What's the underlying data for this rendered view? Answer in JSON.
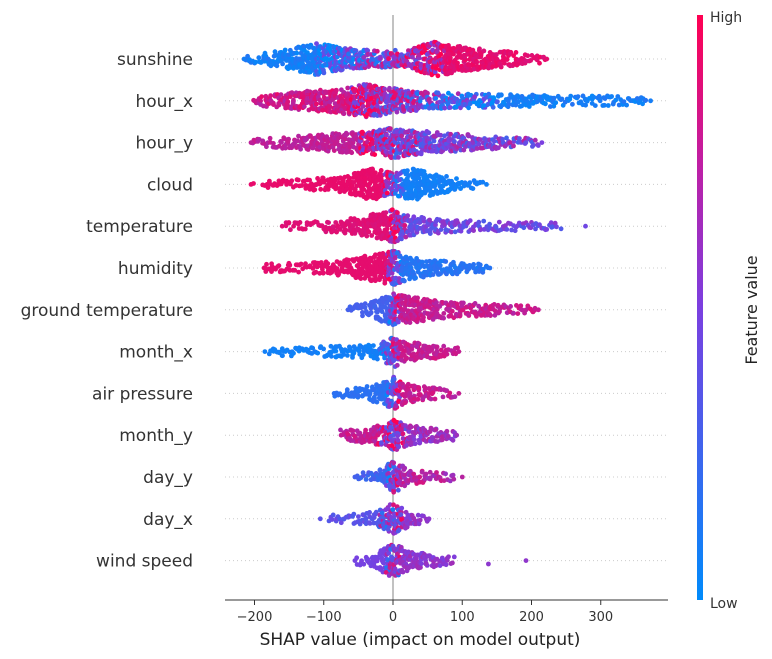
{
  "chart_data": {
    "type": "scatter",
    "subtype": "shap-beeswarm",
    "xlabel": "SHAP value (impact on model output)",
    "x_ticks": [
      -200,
      -100,
      0,
      100,
      200,
      300
    ],
    "xlim": [
      -240,
      385
    ],
    "colorbar": {
      "label": "Feature value",
      "high_label": "High",
      "low_label": "Low",
      "low_color": "#008bfb",
      "high_color": "#ff0052"
    },
    "features": [
      {
        "name": "sunshine",
        "min": -215,
        "max": 222,
        "density": [
          [
            -215,
            0.05
          ],
          [
            -180,
            0.2
          ],
          [
            -140,
            0.55
          ],
          [
            -110,
            0.8
          ],
          [
            -60,
            0.45
          ],
          [
            -20,
            0.35
          ],
          [
            20,
            0.4
          ],
          [
            60,
            0.9
          ],
          [
            100,
            0.6
          ],
          [
            150,
            0.35
          ],
          [
            190,
            0.18
          ],
          [
            222,
            0.04
          ]
        ],
        "color_split": [
          -110,
          0.02,
          0.15,
          75,
          0.95,
          0.85
        ]
      },
      {
        "name": "hour_x",
        "min": -200,
        "max": 372,
        "density": [
          [
            -200,
            0.08
          ],
          [
            -150,
            0.35
          ],
          [
            -80,
            0.55
          ],
          [
            -40,
            0.85
          ],
          [
            0,
            0.6
          ],
          [
            50,
            0.35
          ],
          [
            120,
            0.25
          ],
          [
            200,
            0.18
          ],
          [
            280,
            0.15
          ],
          [
            372,
            0.05
          ]
        ],
        "color_split": [
          -60,
          0.7,
          0.92,
          150,
          0.15,
          0.02
        ]
      },
      {
        "name": "hour_y",
        "min": -205,
        "max": 215,
        "density": [
          [
            -205,
            0.05
          ],
          [
            -150,
            0.2
          ],
          [
            -80,
            0.4
          ],
          [
            -30,
            0.55
          ],
          [
            0,
            0.8
          ],
          [
            30,
            0.6
          ],
          [
            80,
            0.4
          ],
          [
            150,
            0.2
          ],
          [
            215,
            0.04
          ]
        ],
        "color_split": [
          -50,
          0.8,
          0.7,
          40,
          0.25,
          0.75
        ]
      },
      {
        "name": "cloud",
        "min": -205,
        "max": 135,
        "density": [
          [
            -205,
            0.03
          ],
          [
            -130,
            0.15
          ],
          [
            -70,
            0.3
          ],
          [
            -30,
            0.85
          ],
          [
            0,
            0.5
          ],
          [
            30,
            0.8
          ],
          [
            60,
            0.45
          ],
          [
            100,
            0.15
          ],
          [
            135,
            0.04
          ]
        ],
        "color_split": [
          -15,
          0.9,
          0.92,
          15,
          0.1,
          0.05
        ]
      },
      {
        "name": "temperature",
        "min": -160,
        "max": 278,
        "density": [
          [
            -160,
            0.05
          ],
          [
            -100,
            0.15
          ],
          [
            -50,
            0.35
          ],
          [
            -10,
            0.75
          ],
          [
            0,
            0.85
          ],
          [
            20,
            0.5
          ],
          [
            60,
            0.25
          ],
          [
            120,
            0.15
          ],
          [
            200,
            0.08
          ],
          [
            278,
            0.03
          ]
        ],
        "color_split": [
          -5,
          0.85,
          0.9,
          20,
          0.3,
          0.6
        ]
      },
      {
        "name": "humidity",
        "min": -185,
        "max": 140,
        "density": [
          [
            -185,
            0.08
          ],
          [
            -120,
            0.15
          ],
          [
            -60,
            0.35
          ],
          [
            -20,
            0.8
          ],
          [
            0,
            0.9
          ],
          [
            20,
            0.55
          ],
          [
            60,
            0.3
          ],
          [
            100,
            0.2
          ],
          [
            140,
            0.05
          ]
        ],
        "color_split": [
          -10,
          0.9,
          0.9,
          15,
          0.1,
          0.2
        ]
      },
      {
        "name": "ground temperature",
        "min": -65,
        "max": 210,
        "density": [
          [
            -65,
            0.05
          ],
          [
            -30,
            0.3
          ],
          [
            0,
            0.85
          ],
          [
            30,
            0.6
          ],
          [
            70,
            0.35
          ],
          [
            130,
            0.2
          ],
          [
            210,
            0.05
          ]
        ],
        "color_split": [
          -5,
          0.25,
          0.3,
          10,
          0.7,
          0.85
        ]
      },
      {
        "name": "month_x",
        "min": -185,
        "max": 95,
        "density": [
          [
            -185,
            0.05
          ],
          [
            -120,
            0.12
          ],
          [
            -60,
            0.2
          ],
          [
            -20,
            0.3
          ],
          [
            0,
            0.8
          ],
          [
            20,
            0.4
          ],
          [
            60,
            0.25
          ],
          [
            95,
            0.05
          ]
        ],
        "color_split": [
          -20,
          0.05,
          0.1,
          10,
          0.7,
          0.85
        ]
      },
      {
        "name": "air pressure",
        "min": -85,
        "max": 95,
        "density": [
          [
            -85,
            0.05
          ],
          [
            -40,
            0.25
          ],
          [
            -10,
            0.55
          ],
          [
            0,
            0.85
          ],
          [
            15,
            0.45
          ],
          [
            50,
            0.2
          ],
          [
            95,
            0.04
          ]
        ],
        "color_split": [
          -10,
          0.15,
          0.2,
          10,
          0.7,
          0.85
        ]
      },
      {
        "name": "month_y",
        "min": -75,
        "max": 92,
        "density": [
          [
            -75,
            0.15
          ],
          [
            -40,
            0.3
          ],
          [
            -10,
            0.5
          ],
          [
            0,
            0.8
          ],
          [
            20,
            0.45
          ],
          [
            50,
            0.3
          ],
          [
            92,
            0.12
          ]
        ],
        "color_split": [
          -20,
          0.7,
          0.85,
          20,
          0.5,
          0.75
        ]
      },
      {
        "name": "day_y",
        "min": -55,
        "max": 100,
        "density": [
          [
            -55,
            0.05
          ],
          [
            -20,
            0.2
          ],
          [
            0,
            0.85
          ],
          [
            20,
            0.35
          ],
          [
            50,
            0.15
          ],
          [
            100,
            0.03
          ]
        ],
        "color_split": [
          -10,
          0.2,
          0.35,
          10,
          0.6,
          0.85
        ]
      },
      {
        "name": "day_x",
        "min": -105,
        "max": 52,
        "density": [
          [
            -105,
            0.04
          ],
          [
            -60,
            0.1
          ],
          [
            -25,
            0.25
          ],
          [
            0,
            0.8
          ],
          [
            25,
            0.3
          ],
          [
            52,
            0.05
          ]
        ],
        "color_split": [
          -20,
          0.3,
          0.45,
          15,
          0.5,
          0.65
        ]
      },
      {
        "name": "wind speed",
        "min": -55,
        "max": 192,
        "density": [
          [
            -55,
            0.05
          ],
          [
            -25,
            0.25
          ],
          [
            0,
            0.9
          ],
          [
            25,
            0.35
          ],
          [
            60,
            0.2
          ],
          [
            80,
            0.06
          ],
          [
            192,
            0.01
          ]
        ],
        "color_split": [
          -10,
          0.45,
          0.5,
          10,
          0.5,
          0.65
        ]
      }
    ]
  }
}
